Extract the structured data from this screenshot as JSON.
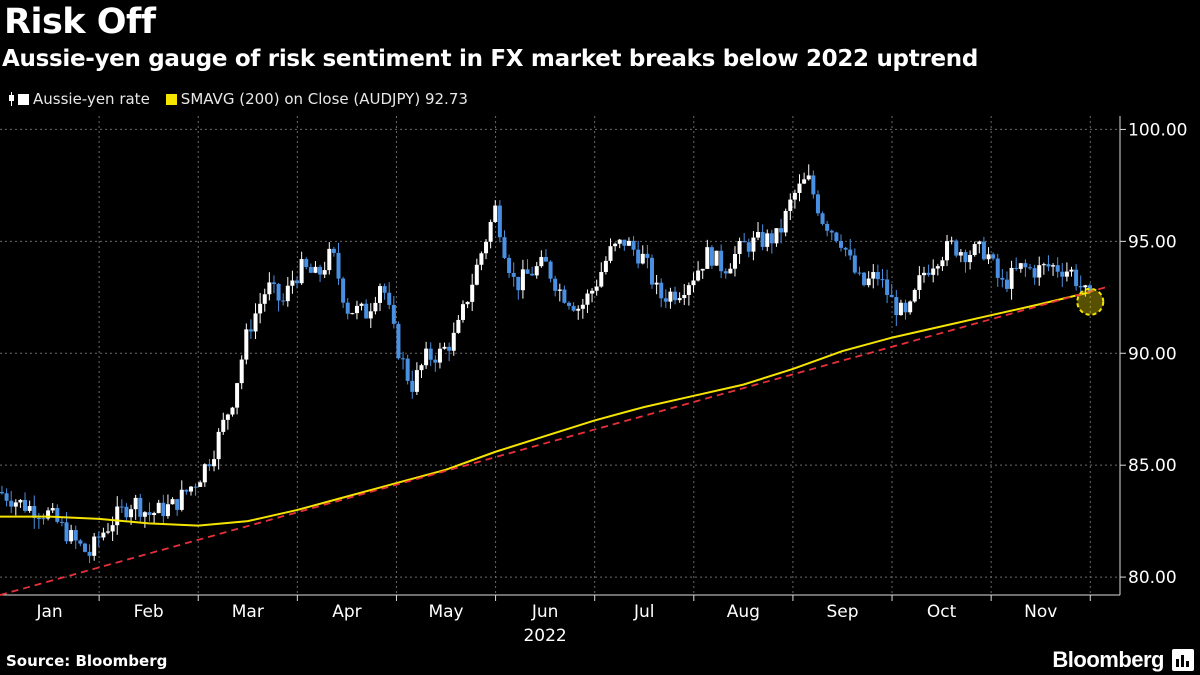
{
  "header": {
    "title": "Risk Off",
    "subtitle": "Aussie-yen gauge of risk sentiment in FX market breaks below 2022 uptrend"
  },
  "legend": {
    "items": [
      {
        "label": "Aussie-yen rate",
        "color": "#ffffff"
      },
      {
        "label": "SMAVG (200)  on Close (AUDJPY) 92.73",
        "color": "#f5e400"
      }
    ]
  },
  "footer": {
    "source": "Source: Bloomberg",
    "brand": "Bloomberg"
  },
  "chart_data": {
    "type": "line",
    "title": "Risk Off",
    "xlabel": "2022",
    "ylabel": "",
    "ylim": [
      79.2,
      100.6
    ],
    "yticks": [
      80,
      85,
      90,
      95,
      100
    ],
    "ytick_labels": [
      "80.00",
      "85.00",
      "90.00",
      "95.00",
      "100.00"
    ],
    "xticks": [
      0.5,
      1.5,
      2.5,
      3.5,
      4.5,
      5.5,
      6.5,
      7.5,
      8.5,
      9.5,
      10.5
    ],
    "xtick_labels": [
      "Jan",
      "Feb",
      "Mar",
      "Apr",
      "May",
      "Jun",
      "Jul",
      "Aug",
      "Sep",
      "Oct",
      "Nov"
    ],
    "xlim": [
      0,
      11.3
    ],
    "year_label": "2022",
    "colors": {
      "up": "#ffffff",
      "down": "#4a90e2",
      "sma": "#f5e400",
      "trend": "#e8303a",
      "highlight": "#f5e400"
    },
    "series": [
      {
        "name": "Aussie-yen rate",
        "x": [
          0.0,
          0.25,
          0.5,
          0.75,
          0.9,
          1.0,
          1.15,
          1.35,
          1.5,
          1.75,
          2.0,
          2.15,
          2.35,
          2.5,
          2.7,
          2.85,
          2.95,
          3.05,
          3.2,
          3.35,
          3.5,
          3.7,
          3.85,
          4.0,
          4.15,
          4.3,
          4.45,
          4.6,
          4.75,
          4.85,
          5.0,
          5.1,
          5.2,
          5.35,
          5.5,
          5.65,
          5.85,
          6.0,
          6.15,
          6.3,
          6.5,
          6.65,
          6.85,
          7.0,
          7.15,
          7.3,
          7.5,
          7.65,
          7.85,
          8.0,
          8.15,
          8.3,
          8.5,
          8.6,
          8.7,
          8.85,
          9.0,
          9.15,
          9.3,
          9.45,
          9.6,
          9.75,
          9.95,
          10.1,
          10.3,
          10.45,
          10.6,
          10.8,
          10.9,
          11.0
        ],
        "values": [
          83.8,
          83.2,
          82.8,
          81.6,
          81.0,
          81.8,
          82.6,
          83.4,
          82.8,
          83.2,
          84.4,
          85.6,
          88.0,
          91.0,
          93.0,
          92.2,
          93.3,
          93.8,
          93.4,
          94.5,
          92.0,
          91.8,
          93.3,
          90.4,
          88.5,
          89.8,
          90.0,
          90.8,
          93.0,
          94.4,
          96.5,
          94.5,
          93.0,
          93.6,
          94.0,
          92.8,
          92.0,
          93.0,
          94.5,
          95.0,
          94.2,
          92.5,
          92.8,
          93.5,
          94.5,
          93.8,
          94.8,
          95.0,
          95.2,
          97.0,
          97.8,
          96.0,
          95.0,
          93.8,
          93.0,
          93.5,
          92.3,
          91.5,
          93.5,
          94.3,
          94.8,
          94.5,
          94.6,
          93.0,
          93.8,
          93.7,
          93.9,
          93.7,
          93.0,
          92.3
        ]
      },
      {
        "name": "SMAVG (200)",
        "x": [
          0.0,
          0.5,
          1.0,
          1.5,
          2.0,
          2.5,
          3.0,
          3.5,
          4.0,
          4.5,
          5.0,
          5.5,
          6.0,
          6.5,
          7.0,
          7.5,
          8.0,
          8.5,
          9.0,
          9.5,
          10.0,
          10.5,
          11.0
        ],
        "values": [
          82.7,
          82.7,
          82.6,
          82.4,
          82.3,
          82.5,
          83.0,
          83.6,
          84.2,
          84.8,
          85.6,
          86.3,
          87.0,
          87.6,
          88.1,
          88.6,
          89.3,
          90.1,
          90.7,
          91.2,
          91.7,
          92.2,
          92.73
        ]
      },
      {
        "name": "2022 uptrend",
        "x": [
          0.0,
          11.2
        ],
        "values": [
          79.2,
          93.0
        ]
      }
    ],
    "highlight": {
      "x": 11.0,
      "value": 92.3
    }
  }
}
